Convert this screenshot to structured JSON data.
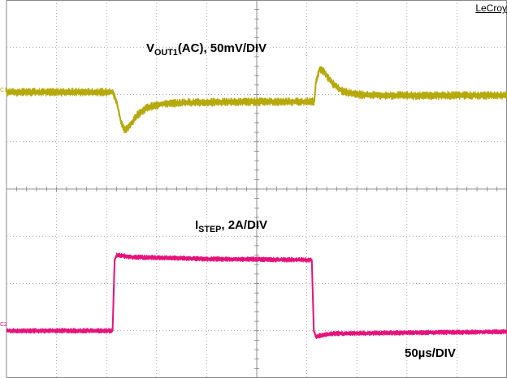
{
  "brand": "LeCroy",
  "colors": {
    "ch1": "#b5a90c",
    "ch2": "#e8117a",
    "grid": "#8a8a8a",
    "background": "#ffffff"
  },
  "channels": [
    {
      "id": "C1",
      "label_main": "V",
      "label_sub": "OUT1",
      "label_rest": "(AC), 50mV/DIV"
    },
    {
      "id": "C2",
      "label_main": "I",
      "label_sub": "STEP",
      "label_rest": ", 2A/DIV"
    }
  ],
  "timebase": "50µs/DIV",
  "chart_data": {
    "type": "line",
    "grid": true,
    "x_divisions": 10,
    "y_divisions": 8,
    "xlim": [
      0,
      10
    ],
    "ylim": [
      0,
      8
    ],
    "series": [
      {
        "name": "C1",
        "points": [
          [
            0,
            6.05
          ],
          [
            2.12,
            6.05
          ],
          [
            2.2,
            5.85
          ],
          [
            2.28,
            5.45
          ],
          [
            2.36,
            5.25
          ],
          [
            2.46,
            5.33
          ],
          [
            2.6,
            5.55
          ],
          [
            2.8,
            5.72
          ],
          [
            3.1,
            5.8
          ],
          [
            3.6,
            5.83
          ],
          [
            4.5,
            5.84
          ],
          [
            5.5,
            5.85
          ],
          [
            6.15,
            5.85
          ],
          [
            6.18,
            6.25
          ],
          [
            6.26,
            6.55
          ],
          [
            6.34,
            6.48
          ],
          [
            6.5,
            6.25
          ],
          [
            6.7,
            6.08
          ],
          [
            7.0,
            6.0
          ],
          [
            7.5,
            5.98
          ],
          [
            10,
            5.98
          ]
        ]
      },
      {
        "name": "C2",
        "points": [
          [
            0,
            1.0
          ],
          [
            2.12,
            1.0
          ],
          [
            2.16,
            2.5
          ],
          [
            2.2,
            2.6
          ],
          [
            2.5,
            2.56
          ],
          [
            4.0,
            2.52
          ],
          [
            6.1,
            2.5
          ],
          [
            6.14,
            1.0
          ],
          [
            6.18,
            0.88
          ],
          [
            6.5,
            0.94
          ],
          [
            10,
            0.98
          ]
        ]
      }
    ]
  }
}
